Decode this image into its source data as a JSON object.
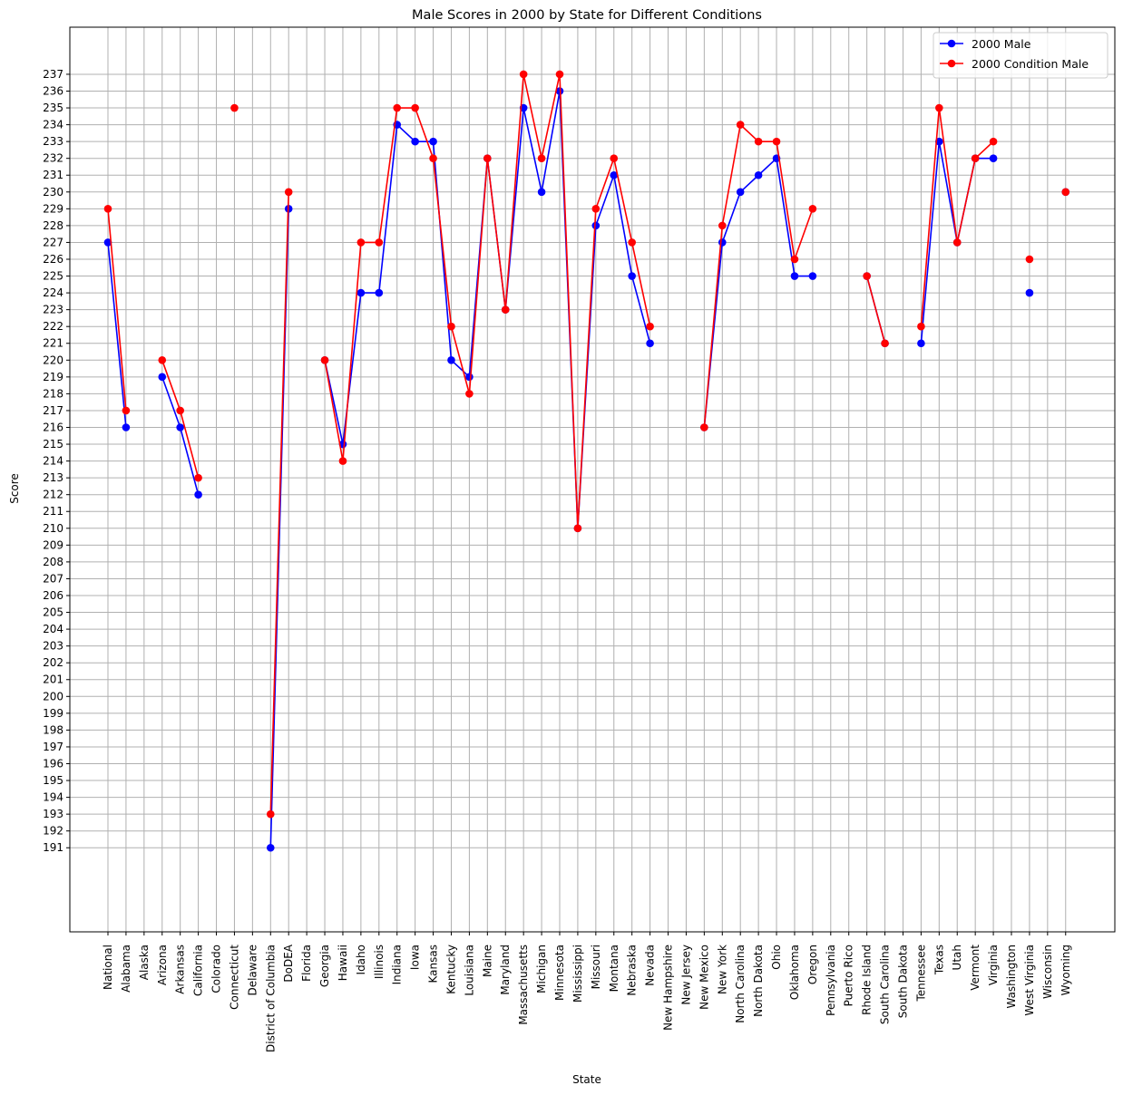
{
  "chart_data": {
    "type": "line",
    "title": "Male Scores in 2000 by State for Different Conditions",
    "xlabel": "State",
    "ylabel": "Score",
    "ylim": [
      186,
      239.8
    ],
    "yticks": [
      191,
      192,
      193,
      194,
      195,
      196,
      197,
      198,
      199,
      200,
      201,
      202,
      203,
      204,
      205,
      206,
      207,
      208,
      209,
      210,
      211,
      212,
      213,
      214,
      215,
      216,
      217,
      218,
      219,
      220,
      221,
      222,
      223,
      224,
      225,
      226,
      227,
      228,
      229,
      230,
      231,
      232,
      233,
      234,
      235,
      236,
      237
    ],
    "grid": true,
    "legend_position": "top-right",
    "categories": [
      "National",
      "Alabama",
      "Alaska",
      "Arizona",
      "Arkansas",
      "California",
      "Colorado",
      "Connecticut",
      "Delaware",
      "District of Columbia",
      "DoDEA",
      "Florida",
      "Georgia",
      "Hawaii",
      "Idaho",
      "Illinois",
      "Indiana",
      "Iowa",
      "Kansas",
      "Kentucky",
      "Louisiana",
      "Maine",
      "Maryland",
      "Massachusetts",
      "Michigan",
      "Minnesota",
      "Mississippi",
      "Missouri",
      "Montana",
      "Nebraska",
      "Nevada",
      "New Hampshire",
      "New Jersey",
      "New Mexico",
      "New York",
      "North Carolina",
      "North Dakota",
      "Ohio",
      "Oklahoma",
      "Oregon",
      "Pennsylvania",
      "Puerto Rico",
      "Rhode Island",
      "South Carolina",
      "South Dakota",
      "Tennessee",
      "Texas",
      "Utah",
      "Vermont",
      "Virginia",
      "Washington",
      "West Virginia",
      "Wisconsin",
      "Wyoming"
    ],
    "series": [
      {
        "name": "2000 Male",
        "color": "#0000ff",
        "values": [
          227,
          216,
          null,
          219,
          216,
          212,
          null,
          null,
          null,
          191,
          229,
          null,
          220,
          215,
          224,
          224,
          234,
          233,
          233,
          220,
          219,
          232,
          223,
          235,
          230,
          236,
          210,
          228,
          231,
          225,
          221,
          null,
          null,
          216,
          227,
          230,
          231,
          232,
          225,
          225,
          null,
          null,
          225,
          221,
          null,
          221,
          233,
          227,
          232,
          232,
          null,
          224,
          null,
          230
        ]
      },
      {
        "name": "2000 Condition Male",
        "color": "#ff0000",
        "values": [
          229,
          217,
          null,
          220,
          217,
          213,
          null,
          235,
          null,
          193,
          230,
          null,
          220,
          214,
          227,
          227,
          235,
          235,
          232,
          222,
          218,
          232,
          223,
          237,
          232,
          237,
          210,
          229,
          232,
          227,
          222,
          null,
          null,
          216,
          228,
          234,
          233,
          233,
          226,
          229,
          null,
          null,
          225,
          221,
          null,
          222,
          235,
          227,
          232,
          233,
          null,
          226,
          null,
          230
        ]
      }
    ]
  }
}
